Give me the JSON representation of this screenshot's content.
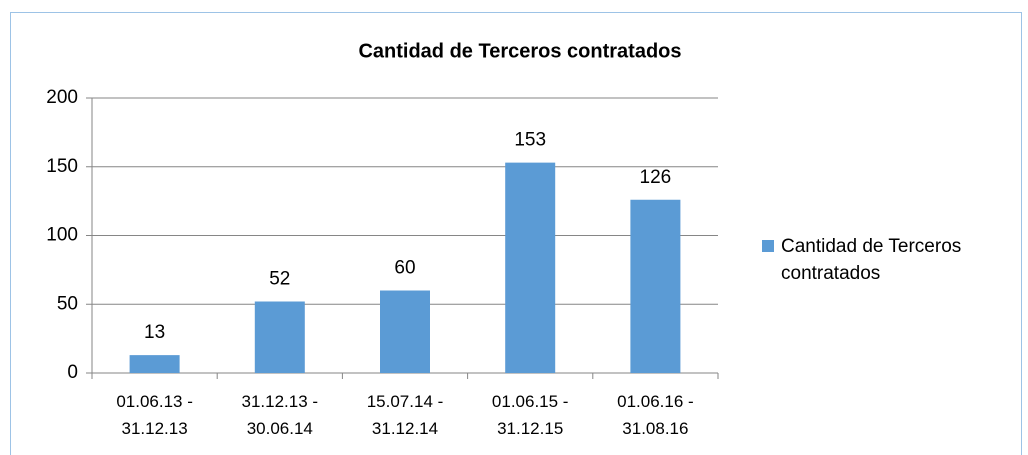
{
  "chart_data": {
    "type": "bar",
    "title": "Cantidad de Terceros contratados",
    "categories": [
      [
        "01.06.13 -",
        "31.12.13"
      ],
      [
        "31.12.13 -",
        "30.06.14"
      ],
      [
        "15.07.14 -",
        "31.12.14"
      ],
      [
        "01.06.15 -",
        "31.12.15"
      ],
      [
        "01.06.16 -",
        "31.08.16"
      ]
    ],
    "series": [
      {
        "name": "Cantidad de Terceros contratados",
        "color": "#5b9bd5",
        "values": [
          13,
          52,
          60,
          153,
          126
        ]
      }
    ],
    "ylim": [
      0,
      200
    ],
    "yticks": [
      0,
      50,
      100,
      150,
      200
    ],
    "grid": true,
    "legend": "right"
  }
}
